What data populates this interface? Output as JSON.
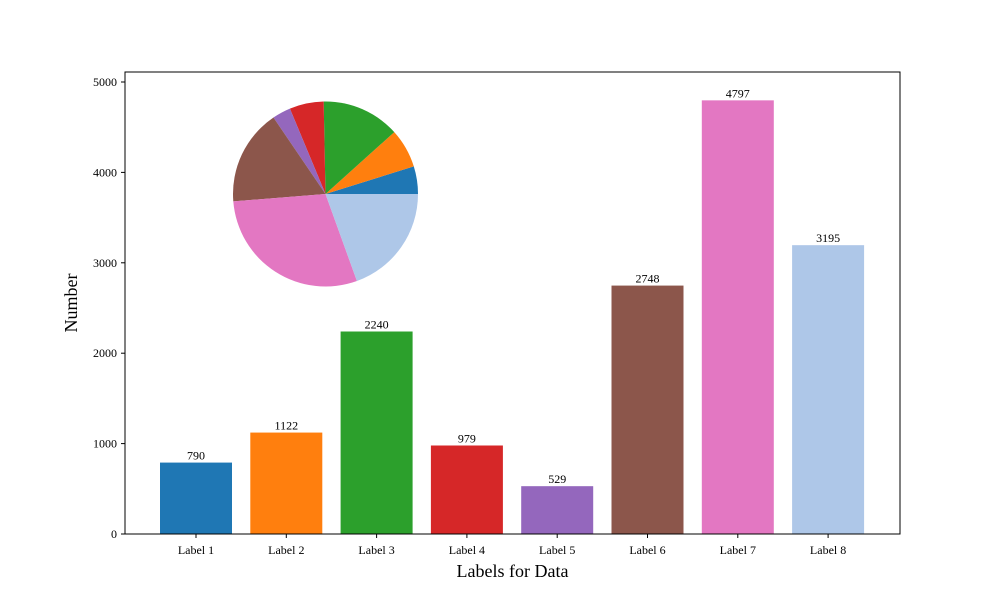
{
  "chart_data": [
    {
      "type": "bar",
      "title": "",
      "xlabel": "Labels for Data",
      "ylabel": "Number",
      "categories": [
        "Label 1",
        "Label 2",
        "Label 3",
        "Label 4",
        "Label 5",
        "Label 6",
        "Label 7",
        "Label 8"
      ],
      "values": [
        790,
        1122,
        2240,
        979,
        529,
        2748,
        4797,
        3195
      ],
      "value_labels": [
        "790",
        "1122",
        "2240",
        "979",
        "529",
        "2748",
        "4797",
        "3195"
      ],
      "colors": [
        "#1f77b4",
        "#ff7f0e",
        "#2ca02c",
        "#d62728",
        "#9467bd",
        "#8c564b",
        "#e377c2",
        "#aec7e8"
      ],
      "yticks": [
        "0",
        "1000",
        "2000",
        "3000",
        "4000",
        "5000"
      ],
      "ylim": [
        0,
        5000
      ],
      "grid": false,
      "legend": false
    },
    {
      "type": "pie",
      "title": "",
      "categories": [
        "Label 1",
        "Label 2",
        "Label 3",
        "Label 4",
        "Label 5",
        "Label 6",
        "Label 7",
        "Label 8"
      ],
      "values": [
        790,
        1122,
        2240,
        979,
        529,
        2748,
        4797,
        3195
      ],
      "colors": [
        "#1f77b4",
        "#ff7f0e",
        "#2ca02c",
        "#d62728",
        "#9467bd",
        "#8c564b",
        "#e377c2",
        "#aec7e8"
      ],
      "start_angle": 0,
      "direction": "counterclockwise",
      "labels_shown": false,
      "inset_position": "top-left"
    }
  ]
}
